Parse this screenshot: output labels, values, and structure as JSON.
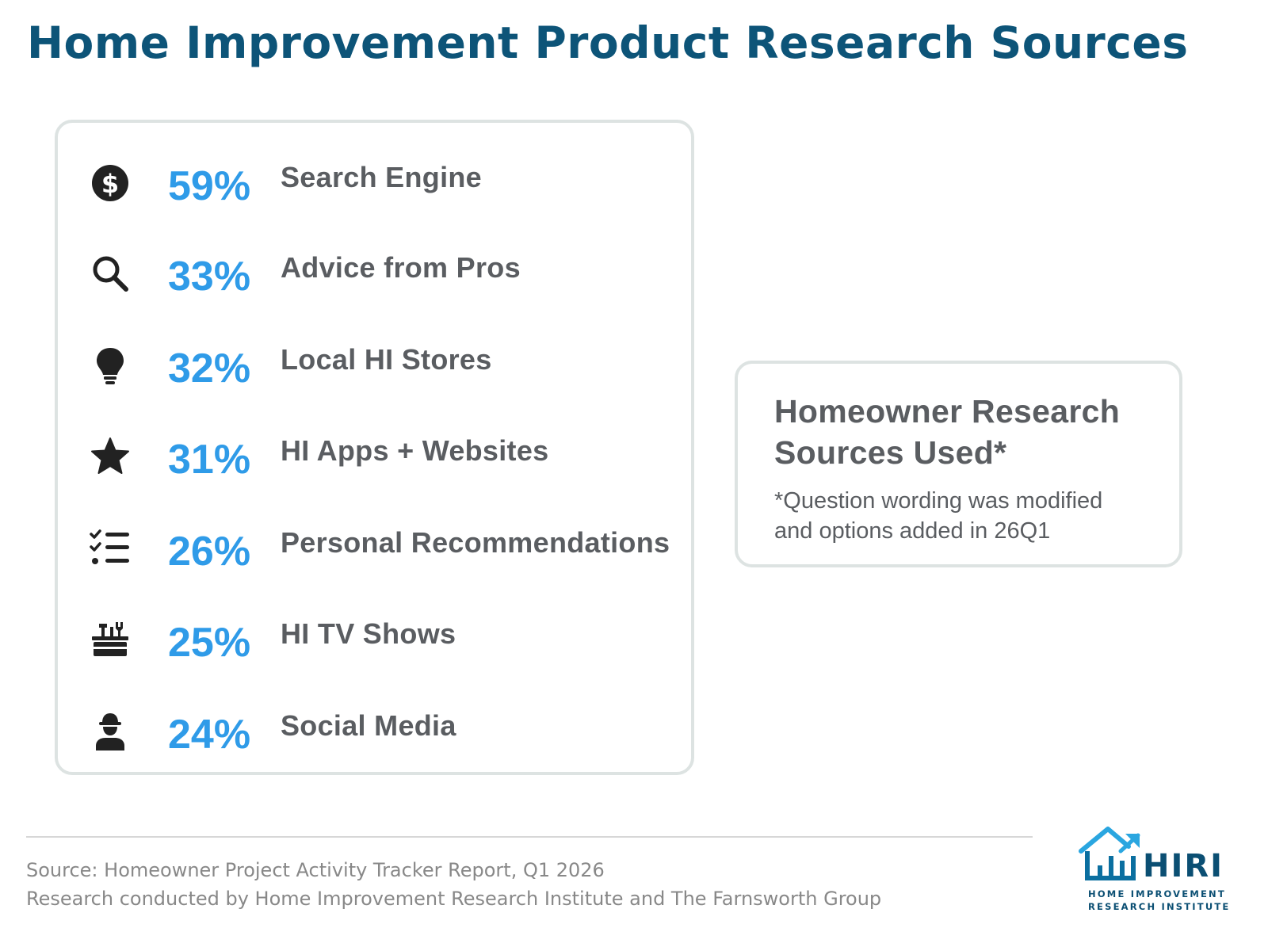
{
  "title": "Home Improvement Product Research Sources",
  "chart_data": {
    "type": "table",
    "title": "Home Improvement Product Research Sources",
    "categories": [
      "Search Engine",
      "Advice from Pros",
      "Local HI Stores",
      "HI Apps + Websites",
      "Personal Recommendations",
      "HI TV Shows",
      "Social Media"
    ],
    "values": [
      59,
      33,
      32,
      31,
      26,
      25,
      24
    ],
    "unit": "%",
    "rows": [
      {
        "pct": "59%",
        "label": "Search Engine",
        "value": 59,
        "icon": "dollar-circle-icon"
      },
      {
        "pct": "33%",
        "label": "Advice from Pros",
        "value": 33,
        "icon": "search-icon"
      },
      {
        "pct": "32%",
        "label": "Local HI Stores",
        "value": 32,
        "icon": "lightbulb-icon"
      },
      {
        "pct": "31%",
        "label": "HI Apps + Websites",
        "value": 31,
        "icon": "star-icon"
      },
      {
        "pct": "26%",
        "label": "Personal Recommendations",
        "value": 26,
        "icon": "checklist-icon"
      },
      {
        "pct": "25%",
        "label": "HI TV Shows",
        "value": 25,
        "icon": "toolbox-icon"
      },
      {
        "pct": "24%",
        "label": "Social Media",
        "value": 24,
        "icon": "worker-icon"
      }
    ]
  },
  "note": {
    "heading_line1": "Homeowner Research",
    "heading_line2": "Sources Used*",
    "text_line1": "*Question wording was modified",
    "text_line2": "and options added in 26Q1"
  },
  "footer": {
    "source": "Source: Homeowner Project Activity Tracker Report, Q1 2026",
    "credit": "Research conducted by Home Improvement Research Institute and The Farnsworth Group"
  },
  "logo": {
    "wordmark": "HIRI",
    "tagline_line1": "HOME IMPROVEMENT",
    "tagline_line2": "RESEARCH INSTITUTE"
  },
  "colors": {
    "title": "#0d5478",
    "percent": "#2f9be8",
    "label": "#5a5d61",
    "icon": "#222222",
    "panel_border": "#dde3e2",
    "logo_blue": "#0b4f73",
    "logo_accent": "#2aa6e0"
  }
}
